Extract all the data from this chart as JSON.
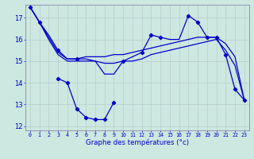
{
  "xlabel": "Graphe des températures (°c)",
  "x_ticks": [
    0,
    1,
    2,
    3,
    4,
    5,
    6,
    7,
    8,
    9,
    10,
    11,
    12,
    13,
    14,
    15,
    16,
    17,
    18,
    19,
    20,
    21,
    22,
    23
  ],
  "ylim": [
    11.8,
    17.6
  ],
  "yticks": [
    12,
    13,
    14,
    15,
    16,
    17
  ],
  "background_color": "#cce8e0",
  "grid_color": "#bbcccc",
  "line_color": "#0000cc",
  "series": {
    "line1_x": [
      0,
      1,
      2,
      3,
      4,
      5,
      6,
      7,
      8,
      9,
      10,
      11,
      12,
      13,
      14,
      15,
      16,
      17,
      18,
      19,
      20,
      21,
      22,
      23
    ],
    "line1_y": [
      17.5,
      16.8,
      16.2,
      15.5,
      15.1,
      15.1,
      15.1,
      15.0,
      14.4,
      14.4,
      15.0,
      15.2,
      15.4,
      16.2,
      16.1,
      16.0,
      16.0,
      17.1,
      16.8,
      16.1,
      16.1,
      15.3,
      13.7,
      13.2
    ],
    "line2_x": [
      0,
      1,
      2,
      3,
      4,
      5,
      6,
      7,
      8,
      9,
      10,
      11,
      12,
      13,
      14,
      15,
      16,
      17,
      18,
      19,
      20,
      21,
      22,
      23
    ],
    "line2_y": [
      17.5,
      16.8,
      16.1,
      15.4,
      15.1,
      15.1,
      15.2,
      15.2,
      15.2,
      15.3,
      15.3,
      15.4,
      15.5,
      15.6,
      15.7,
      15.8,
      15.9,
      16.0,
      16.1,
      16.1,
      16.1,
      15.8,
      15.2,
      13.2
    ],
    "line3_x": [
      0,
      1,
      2,
      3,
      4,
      5,
      6,
      7,
      8,
      9,
      10,
      11,
      12,
      13,
      14,
      15,
      16,
      17,
      18,
      19,
      20,
      21,
      22,
      23
    ],
    "line3_y": [
      17.5,
      16.8,
      16.0,
      15.3,
      15.0,
      15.0,
      15.0,
      15.0,
      14.9,
      14.9,
      15.0,
      15.0,
      15.1,
      15.3,
      15.4,
      15.5,
      15.6,
      15.7,
      15.8,
      15.9,
      16.0,
      15.5,
      14.8,
      13.2
    ],
    "line4_x": [
      3,
      4,
      5,
      6,
      7,
      8,
      9
    ],
    "line4_y": [
      14.2,
      14.0,
      12.8,
      12.4,
      12.3,
      12.3,
      13.1
    ]
  },
  "markers1_x": [
    0,
    1,
    3,
    5,
    10,
    12,
    13,
    14,
    17,
    18,
    19,
    20,
    21,
    22,
    23
  ],
  "markers1_y": [
    17.5,
    16.8,
    15.5,
    15.1,
    15.0,
    15.4,
    16.2,
    16.1,
    17.1,
    16.8,
    16.1,
    16.1,
    15.3,
    13.7,
    13.2
  ],
  "markers4_x": [
    3,
    4,
    5,
    6,
    7,
    8,
    9
  ],
  "markers4_y": [
    14.2,
    14.0,
    12.8,
    12.4,
    12.3,
    12.3,
    13.1
  ]
}
